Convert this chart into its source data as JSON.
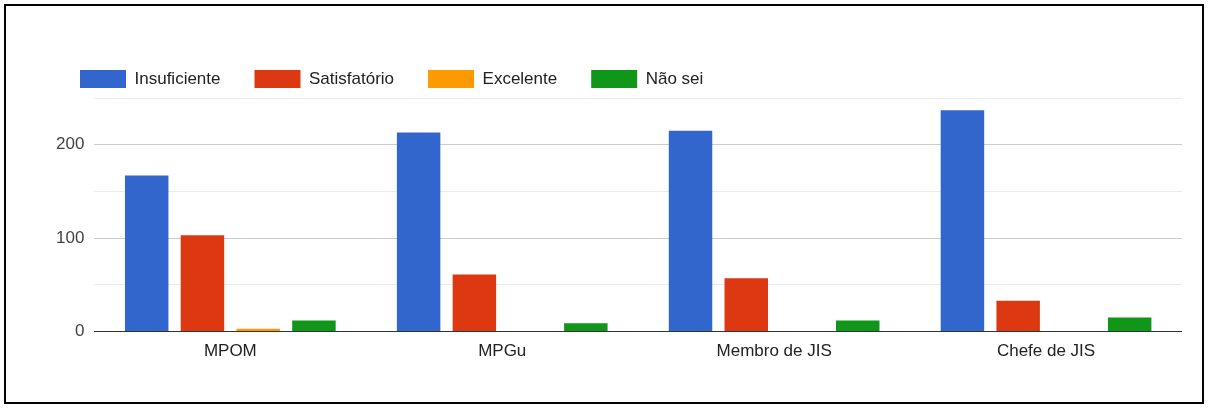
{
  "chart_data": {
    "type": "bar",
    "categories": [
      "MPOM",
      "MPGu",
      "Membro de JIS",
      "Chefe de JIS"
    ],
    "series": [
      {
        "name": "Insuficiente",
        "color": "#3366cc",
        "values": [
          167,
          213,
          215,
          237
        ]
      },
      {
        "name": "Satisfatório",
        "color": "#dc3912",
        "values": [
          103,
          61,
          57,
          33
        ]
      },
      {
        "name": "Excelente",
        "color": "#ff9900",
        "values": [
          3,
          0,
          0,
          0
        ]
      },
      {
        "name": "Não sei",
        "color": "#109618",
        "values": [
          12,
          9,
          12,
          15
        ]
      }
    ],
    "ylim": [
      0,
      250
    ],
    "yticks": [
      0,
      {
        "value": 50,
        "label": null
      },
      100,
      {
        "value": 150,
        "label": null
      },
      200,
      {
        "value": 250,
        "label": null
      }
    ],
    "grid": "y",
    "legend": "top left"
  }
}
